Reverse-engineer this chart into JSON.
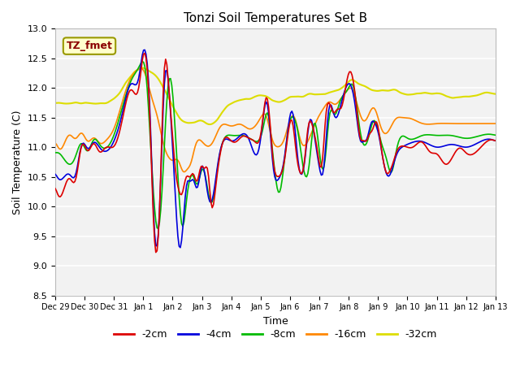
{
  "title": "Tonzi Soil Temperatures Set B",
  "xlabel": "Time",
  "ylabel": "Soil Temperature (C)",
  "ylim": [
    8.5,
    13.0
  ],
  "xlim": [
    0,
    15
  ],
  "annotation_text": "TZ_fmet",
  "annotation_color": "#8B0000",
  "annotation_bg": "#FFFFCC",
  "annotation_border": "#999900",
  "line_colors": {
    "-2cm": "#DD0000",
    "-4cm": "#0000DD",
    "-8cm": "#00BB00",
    "-16cm": "#FF8800",
    "-32cm": "#DDDD00"
  },
  "fig_bg": "#FFFFFF",
  "plot_bg": "#F2F2F2",
  "grid_color": "#FFFFFF",
  "x_ticks": [
    "Dec 29",
    "Dec 30",
    "Dec 31",
    "Jan 1",
    "Jan 2",
    "Jan 3",
    "Jan 4",
    "Jan 5",
    "Jan 6",
    "Jan 7",
    "Jan 8",
    "Jan 9",
    "Jan 10",
    "Jan 11",
    "Jan 12",
    "Jan 13"
  ],
  "y_ticks": [
    8.5,
    9.0,
    9.5,
    10.0,
    10.5,
    11.0,
    11.5,
    12.0,
    12.5,
    13.0
  ]
}
